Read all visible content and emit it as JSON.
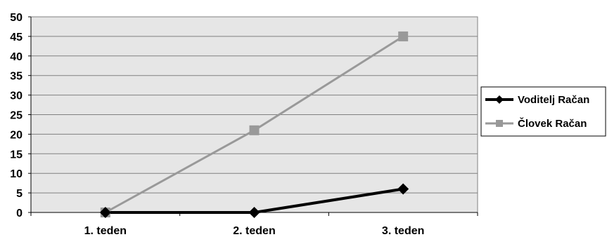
{
  "chart_data": {
    "type": "line",
    "categories": [
      "1. teden",
      "2. teden",
      "3. teden"
    ],
    "series": [
      {
        "name": "Voditelj Račan",
        "values": [
          0,
          0,
          6
        ],
        "color": "#000000",
        "marker": "diamond"
      },
      {
        "name": "Človek Račan",
        "values": [
          0,
          21,
          45
        ],
        "color": "#999999",
        "marker": "square"
      }
    ],
    "ylim": [
      0,
      50
    ],
    "yticks": [
      0,
      5,
      10,
      15,
      20,
      25,
      30,
      35,
      40,
      45,
      50
    ],
    "grid": true,
    "plot_background": "#e6e6e6",
    "legend_position": "right"
  }
}
